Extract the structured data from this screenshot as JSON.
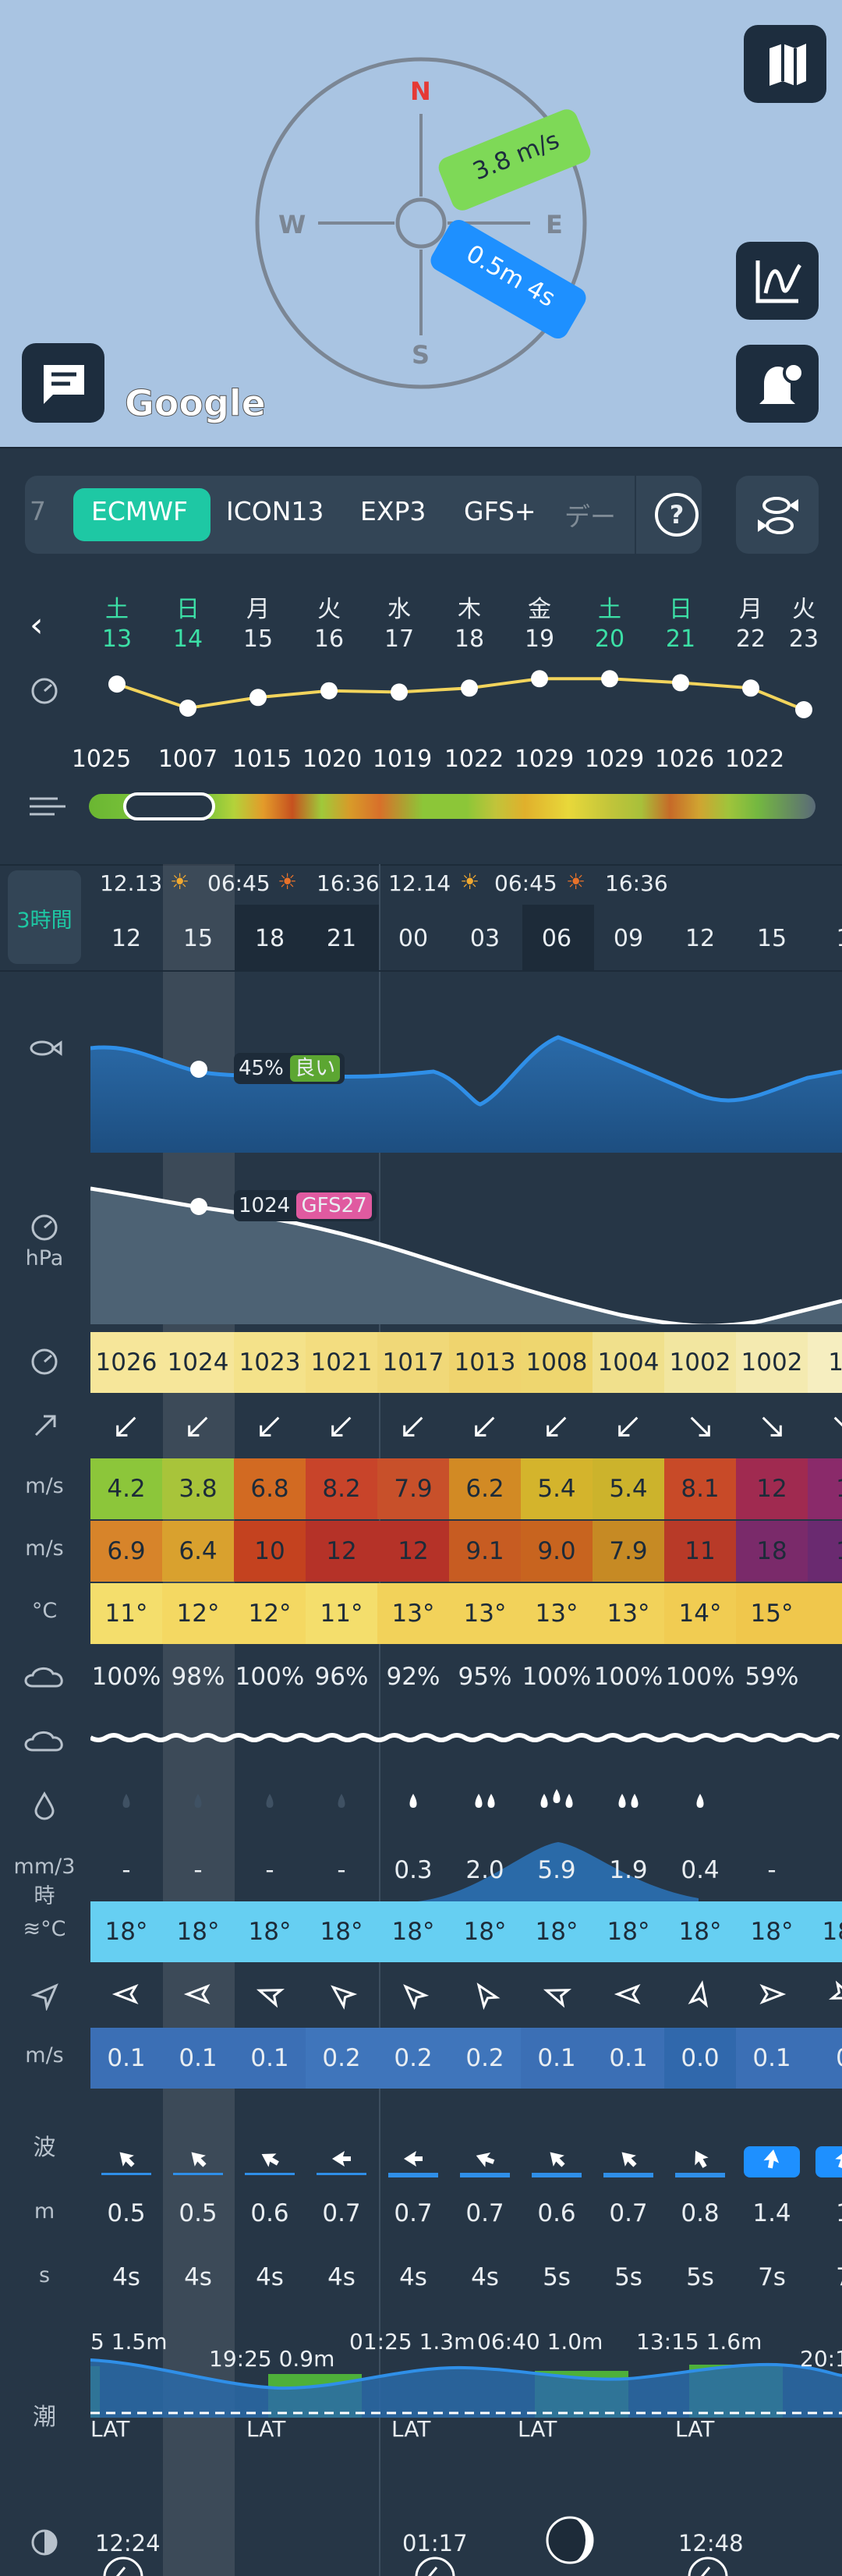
{
  "map": {
    "compass": {
      "n": "N",
      "e": "E",
      "s": "S",
      "w": "W"
    },
    "wind_label": "3.8 m/s",
    "wave_label": "0.5m 4s",
    "google": "Google",
    "accent_wind": "#7ed957",
    "accent_wave": "#1e90ff",
    "buttons": [
      "map-icon",
      "tide-chart-icon",
      "alert-settings-icon",
      "chat-icon"
    ]
  },
  "models": {
    "partial_left": "7",
    "items": [
      "ECMWF",
      "ICON13",
      "EXP3",
      "GFS+",
      "デー"
    ],
    "selected": "ECMWF",
    "help": "?",
    "fish": "fish-icon"
  },
  "days": [
    {
      "name": "土",
      "num": "13",
      "weekend": true
    },
    {
      "name": "日",
      "num": "14",
      "weekend": true
    },
    {
      "name": "月",
      "num": "15"
    },
    {
      "name": "火",
      "num": "16"
    },
    {
      "name": "水",
      "num": "17"
    },
    {
      "name": "木",
      "num": "18"
    },
    {
      "name": "金",
      "num": "19"
    },
    {
      "name": "土",
      "num": "20",
      "weekend": true
    },
    {
      "name": "日",
      "num": "21",
      "weekend": true
    },
    {
      "name": "月",
      "num": "22"
    },
    {
      "name": "火",
      "num": "23"
    }
  ],
  "daily_pressure": [
    "1025",
    "1007",
    "1015",
    "1020",
    "1019",
    "1022",
    "1029",
    "1029",
    "1026",
    "1022"
  ],
  "interval": "3時間",
  "date_row": {
    "d1": "12.13",
    "rise1": "06:45",
    "set1": "16:36",
    "d2": "12.14",
    "rise2": "06:45",
    "set2": "16:36"
  },
  "hours": [
    "12",
    "15",
    "18",
    "21",
    "00",
    "03",
    "06",
    "09",
    "12",
    "15",
    "1"
  ],
  "fishing": {
    "pct": "45%",
    "label": "良い"
  },
  "pressure_marker": {
    "value": "1024",
    "model": "GFS27"
  },
  "units": {
    "hpa": "hPa",
    "ms": "m/s",
    "c": "°C",
    "mm": "mm/3時",
    "sea": "≋°C",
    "wave": "波",
    "m": "m",
    "s": "s",
    "tide": "潮"
  },
  "pressure": [
    "1026",
    "1024",
    "1023",
    "1021",
    "1017",
    "1013",
    "1008",
    "1004",
    "1002",
    "1002",
    "10"
  ],
  "wind_speed": [
    "4.2",
    "3.8",
    "6.8",
    "8.2",
    "7.9",
    "6.2",
    "5.4",
    "5.4",
    "8.1",
    "12",
    "1"
  ],
  "gusts": [
    "6.9",
    "6.4",
    "10",
    "12",
    "12",
    "9.1",
    "9.0",
    "7.9",
    "11",
    "18",
    "1"
  ],
  "temp": [
    "11°",
    "12°",
    "12°",
    "11°",
    "13°",
    "13°",
    "13°",
    "13°",
    "14°",
    "15°",
    ""
  ],
  "cloud": [
    "100%",
    "98%",
    "100%",
    "96%",
    "92%",
    "95%",
    "100%",
    "100%",
    "100%",
    "59%",
    ""
  ],
  "rain": [
    "-",
    "-",
    "-",
    "-",
    "0.3",
    "2.0",
    "5.9",
    "1.9",
    "0.4",
    "-",
    ""
  ],
  "sea_temp": [
    "18°",
    "18°",
    "18°",
    "18°",
    "18°",
    "18°",
    "18°",
    "18°",
    "18°",
    "18°",
    "18°"
  ],
  "current": [
    "0.1",
    "0.1",
    "0.1",
    "0.2",
    "0.2",
    "0.2",
    "0.1",
    "0.1",
    "0.0",
    "0.1",
    "0"
  ],
  "wave_height": [
    "0.5",
    "0.5",
    "0.6",
    "0.7",
    "0.7",
    "0.7",
    "0.6",
    "0.7",
    "0.8",
    "1.4",
    "1"
  ],
  "wave_period": [
    "4s",
    "4s",
    "4s",
    "4s",
    "4s",
    "4s",
    "5s",
    "5s",
    "5s",
    "7s",
    "7"
  ],
  "tide": {
    "labels": [
      "5 1.5m",
      "19:25 0.9m",
      "01:25 1.3m",
      "06:40 1.0m",
      "13:15 1.6m",
      "20:1"
    ],
    "lat": "LAT"
  },
  "moon": {
    "times": [
      "12:24",
      "01:17",
      "12:48"
    ]
  },
  "colors": {
    "bg": "#263646",
    "selected": "#1ec8a4",
    "weekend": "#3ce0a6"
  }
}
